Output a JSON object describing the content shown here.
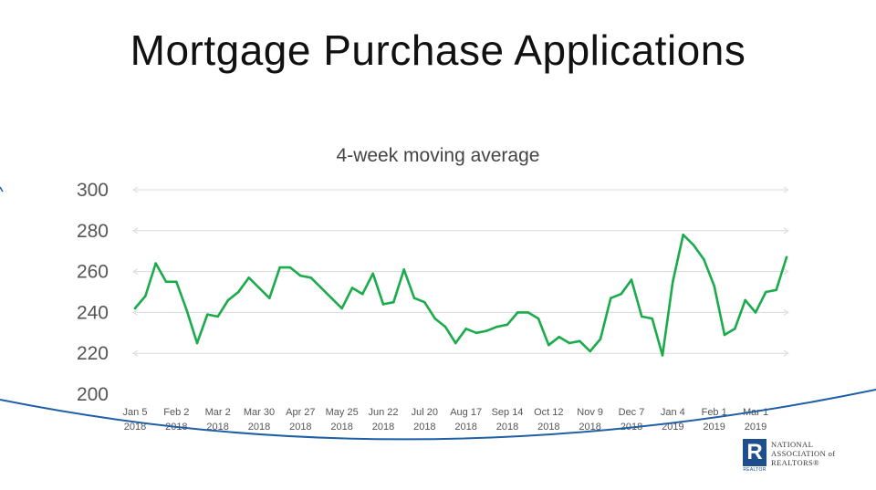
{
  "title": "Mortgage Purchase Applications",
  "logo": {
    "mark": "R",
    "sub": "REALTOR",
    "lines": [
      "NATIONAL",
      "ASSOCIATION of",
      "REALTORS®"
    ]
  },
  "colors": {
    "line": "#1aab4b",
    "grid": "#d9d9d9",
    "arc": "#1f5fa6"
  },
  "chart_data": {
    "type": "line",
    "title": "",
    "subtitle": "4-week moving average",
    "xlabel": "",
    "ylabel": "",
    "ylim": [
      200,
      300
    ],
    "yticks": [
      200,
      220,
      240,
      260,
      280,
      300
    ],
    "grid": true,
    "legend": "none",
    "x_tick_labels": [
      [
        "Jan 5",
        "2018"
      ],
      [
        "Feb 2",
        "2018"
      ],
      [
        "Mar 2",
        "2018"
      ],
      [
        "Mar 30",
        "2018"
      ],
      [
        "Apr 27",
        "2018"
      ],
      [
        "May 25",
        "2018"
      ],
      [
        "Jun 22",
        "2018"
      ],
      [
        "Jul 20",
        "2018"
      ],
      [
        "Aug 17",
        "2018"
      ],
      [
        "Sep 14",
        "2018"
      ],
      [
        "Oct 12",
        "2018"
      ],
      [
        "Nov 9",
        "2018"
      ],
      [
        "Dec 7",
        "2018"
      ],
      [
        "Jan 4",
        "2019"
      ],
      [
        "Feb 1",
        "2019"
      ],
      [
        "Mar 1",
        "2019"
      ]
    ],
    "x_tick_every": 4,
    "series": [
      {
        "values": [
          242,
          248,
          264,
          255,
          255,
          241,
          225,
          239,
          238,
          246,
          250,
          257,
          252,
          247,
          262,
          262,
          258,
          257,
          252,
          247,
          242,
          252,
          249,
          259,
          244,
          245,
          261,
          247,
          245,
          237,
          233,
          225,
          232,
          230,
          231,
          233,
          234,
          240,
          240,
          237,
          224,
          228,
          225,
          226,
          221,
          227,
          247,
          249,
          256,
          238,
          237,
          219,
          255,
          278,
          273,
          266,
          253,
          229,
          232,
          246,
          240,
          250,
          251,
          267
        ]
      }
    ]
  }
}
